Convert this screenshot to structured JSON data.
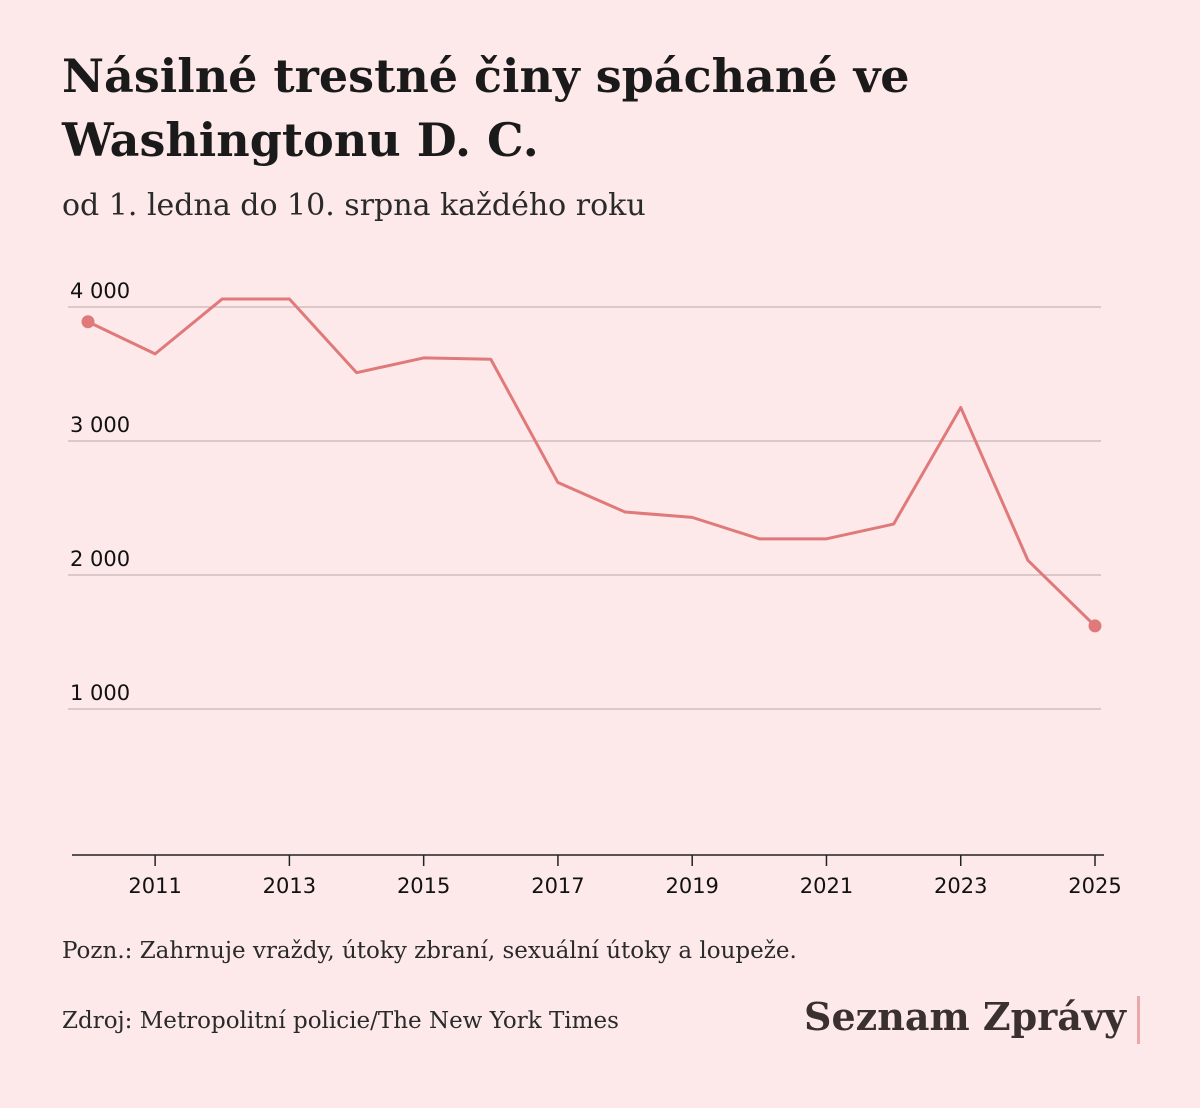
{
  "header": {
    "title": "Násilné trestné činy spáchané ve Washingtonu D. C.",
    "subtitle": "od 1. ledna do 10. srpna každého roku"
  },
  "footer": {
    "note": "Pozn.: Zahrnuje vraždy, útoky zbraní, sexuální útoky a loupeže.",
    "source": "Zdroj: Metropolitní policie/The New York Times",
    "brand": "Seznam Zprávy"
  },
  "colors": {
    "background": "#fde9ea",
    "line": "#e07a7a",
    "grid": "#b9a9aa",
    "axis": "#222222",
    "brand_accent": "#e9a9ab"
  },
  "chart_data": {
    "type": "line",
    "title": "Násilné trestné činy spáchané ve Washingtonu D. C.",
    "subtitle": "od 1. ledna do 10. srpna každého roku",
    "xlabel": "",
    "ylabel": "",
    "x": [
      2010,
      2011,
      2012,
      2013,
      2014,
      2015,
      2016,
      2017,
      2018,
      2019,
      2020,
      2021,
      2022,
      2023,
      2024,
      2025
    ],
    "values": [
      3890,
      3650,
      4060,
      4060,
      3510,
      3620,
      3610,
      2690,
      2470,
      2430,
      2270,
      2270,
      2380,
      3250,
      2110,
      1620
    ],
    "ylim": [
      0,
      4000
    ],
    "yticks": [
      1000,
      2000,
      3000,
      4000
    ],
    "ytick_labels": [
      "1 000",
      "2 000",
      "3 000",
      "4 000"
    ],
    "xticks": [
      2011,
      2013,
      2015,
      2017,
      2019,
      2021,
      2023,
      2025
    ],
    "xtick_labels": [
      "2011",
      "2013",
      "2015",
      "2017",
      "2019",
      "2021",
      "2023",
      "2025"
    ],
    "grid": true,
    "endpoint_markers": true,
    "legend": "none"
  }
}
